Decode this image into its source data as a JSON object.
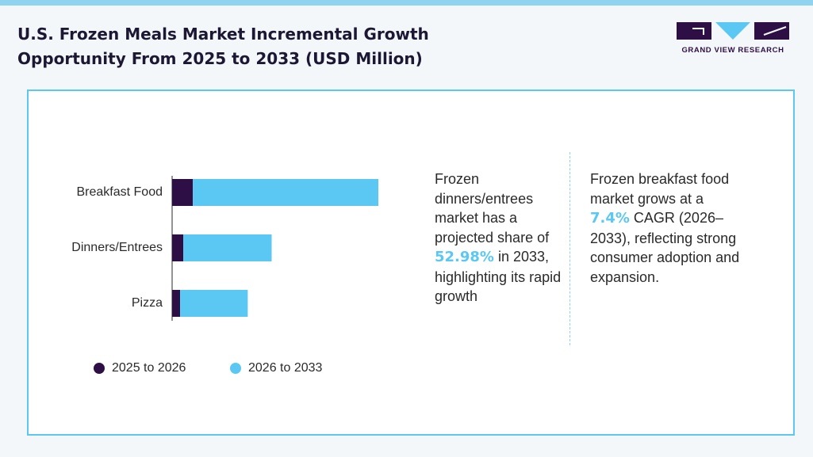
{
  "header": {
    "title": "U.S. Frozen Meals Market Incremental Growth Opportunity From 2025 to 2033 (USD Million)",
    "brand": "GRAND VIEW RESEARCH"
  },
  "chart_data": {
    "type": "stacked-barh",
    "categories": [
      "Breakfast Food",
      "Dinners/Entrees",
      "Pizza"
    ],
    "series": [
      {
        "name": "2025 to 2026",
        "color": "#2d0f45",
        "values": [
          26,
          14,
          10
        ]
      },
      {
        "name": "2026 to 2033",
        "color": "#5ac8f2",
        "values": [
          233,
          111,
          85
        ]
      }
    ]
  },
  "notes": [
    {
      "before": "Frozen dinners/entrees market has a projected share of ",
      "highlight": "52.98%",
      "after": " in 2033, highlighting its rapid growth"
    },
    {
      "before": "Frozen breakfast food market grows at a ",
      "highlight": "7.4%",
      "after": " CAGR (2026–2033), reflecting strong consumer adoption and expansion."
    }
  ]
}
